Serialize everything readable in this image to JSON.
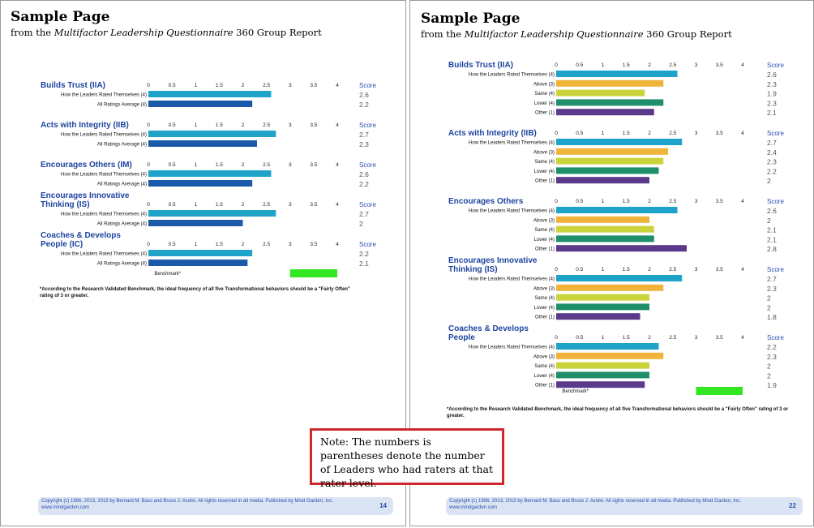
{
  "note": "Note: The numbers is parentheses denote the number of Leaders who had raters at that rater level.",
  "axis_ticks": [
    "0",
    "0.5",
    "1",
    "1.5",
    "2",
    "2.5",
    "3",
    "3.5",
    "4"
  ],
  "score_label": "Score",
  "benchmark_label": "Benchmark*",
  "colors": {
    "self": "#1fa3c9",
    "average": "#1b5aa8",
    "above": "#f0b43a",
    "same": "#cbd33a",
    "lower": "#1f8e6b",
    "other": "#5b3a8c",
    "benchmark": "#33e622",
    "note_border": "#d0262d",
    "title_blue": "#1e44a0"
  },
  "left": {
    "title": "Sample Page",
    "subtitle_prefix": "from the ",
    "subtitle_italic": "Multifactor Leadership Questionnaire",
    "subtitle_suffix": " 360 Group Report",
    "footnote": "*According to the Research Validated Benchmark, the ideal frequency of all five Transformational behaviors should be a \"Fairly Often\" rating of 3 or greater.",
    "footer_text": "Copyright (c) 1996, 2013, 2015 by Bernard M. Bass and Bruce J. Avolio. All rights reserved in all media. Published by Mind Garden, Inc. www.mindgarden.com",
    "page_number": "14"
  },
  "right": {
    "title": "Sample Page",
    "subtitle_prefix": "from the ",
    "subtitle_italic": "Multifactor Leadership Questionnaire",
    "subtitle_suffix": " 360 Group Report",
    "footnote": "*According to the Research Validated Benchmark, the ideal frequency of all five Transformational behaviors should be a \"Fairly Often\" rating of 3 or greater.",
    "footer_text": "Copyright (c) 1996, 2013, 2015 by Bernard M. Bass and Bruce J. Avolio. All rights reserved in all media. Published by Mind Garden, Inc. www.mindgarden.com",
    "page_number": "22"
  },
  "chart_data": [
    {
      "type": "bar",
      "orientation": "horizontal",
      "xlim": [
        0,
        4
      ],
      "benchmark": [
        3,
        4
      ],
      "sections": [
        {
          "title": [
            "Builds Trust (IIA)"
          ],
          "rows": [
            {
              "label": "How the Leaders Rated Themselves (4)",
              "value": 2.6,
              "group": "self"
            },
            {
              "label": "All Ratings Average (4)",
              "value": 2.2,
              "group": "average"
            }
          ]
        },
        {
          "title": [
            "Acts with Integrity (IIB)"
          ],
          "rows": [
            {
              "label": "How the Leaders Rated Themselves (4)",
              "value": 2.7,
              "group": "self"
            },
            {
              "label": "All Ratings Average (4)",
              "value": 2.3,
              "group": "average"
            }
          ]
        },
        {
          "title": [
            "Encourages Others (IM)"
          ],
          "rows": [
            {
              "label": "How the Leaders Rated Themselves (4)",
              "value": 2.6,
              "group": "self"
            },
            {
              "label": "All Ratings Average (4)",
              "value": 2.2,
              "group": "average"
            }
          ]
        },
        {
          "title": [
            "Encourages Innovative",
            "Thinking (IS)"
          ],
          "rows": [
            {
              "label": "How the Leaders Rated Themselves (4)",
              "value": 2.7,
              "group": "self"
            },
            {
              "label": "All Ratings Average (4)",
              "value": 2,
              "group": "average"
            }
          ]
        },
        {
          "title": [
            "Coaches & Develops",
            "People (IC)"
          ],
          "rows": [
            {
              "label": "How the Leaders Rated Themselves (4)",
              "value": 2.2,
              "group": "self"
            },
            {
              "label": "All Ratings Average (4)",
              "value": 2.1,
              "group": "average"
            }
          ]
        }
      ]
    },
    {
      "type": "bar",
      "orientation": "horizontal",
      "xlim": [
        0,
        4
      ],
      "benchmark": [
        3,
        4
      ],
      "sections": [
        {
          "title": [
            "Builds Trust (IIA)"
          ],
          "rows": [
            {
              "label": "How the Leaders Rated Themselves (4)",
              "value": 2.6,
              "group": "self"
            },
            {
              "label": "Above (3)",
              "value": 2.3,
              "group": "above"
            },
            {
              "label": "Same (4)",
              "value": 1.9,
              "group": "same"
            },
            {
              "label": "Lower (4)",
              "value": 2.3,
              "group": "lower"
            },
            {
              "label": "Other (1)",
              "value": 2.1,
              "group": "other"
            }
          ]
        },
        {
          "title": [
            "Acts with Integrity (IIB)"
          ],
          "rows": [
            {
              "label": "How the Leaders Rated Themselves (4)",
              "value": 2.7,
              "group": "self"
            },
            {
              "label": "Above (3)",
              "value": 2.4,
              "group": "above"
            },
            {
              "label": "Same (4)",
              "value": 2.3,
              "group": "same"
            },
            {
              "label": "Lower (4)",
              "value": 2.2,
              "group": "lower"
            },
            {
              "label": "Other (1)",
              "value": 2,
              "group": "other"
            }
          ]
        },
        {
          "title": [
            "Encourages Others"
          ],
          "rows": [
            {
              "label": "How the Leaders Rated Themselves (4)",
              "value": 2.6,
              "group": "self"
            },
            {
              "label": "Above (3)",
              "value": 2,
              "group": "above"
            },
            {
              "label": "Same (4)",
              "value": 2.1,
              "group": "same"
            },
            {
              "label": "Lower (4)",
              "value": 2.1,
              "group": "lower"
            },
            {
              "label": "Other (1)",
              "value": 2.8,
              "group": "other"
            }
          ]
        },
        {
          "title": [
            "Encourages Innovative",
            "Thinking (IS)"
          ],
          "rows": [
            {
              "label": "How the Leaders Rated Themselves (4)",
              "value": 2.7,
              "group": "self"
            },
            {
              "label": "Above (3)",
              "value": 2.3,
              "group": "above"
            },
            {
              "label": "Same (4)",
              "value": 2,
              "group": "same"
            },
            {
              "label": "Lower (4)",
              "value": 2,
              "group": "lower"
            },
            {
              "label": "Other (1)",
              "value": 1.8,
              "group": "other"
            }
          ]
        },
        {
          "title": [
            "Coaches & Develops",
            "People"
          ],
          "rows": [
            {
              "label": "How the Leaders Rated Themselves (4)",
              "value": 2.2,
              "group": "self"
            },
            {
              "label": "Above (3)",
              "value": 2.3,
              "group": "above"
            },
            {
              "label": "Same (4)",
              "value": 2,
              "group": "same"
            },
            {
              "label": "Lower (4)",
              "value": 2,
              "group": "lower"
            },
            {
              "label": "Other (1)",
              "value": 1.9,
              "group": "other"
            }
          ]
        }
      ]
    }
  ]
}
